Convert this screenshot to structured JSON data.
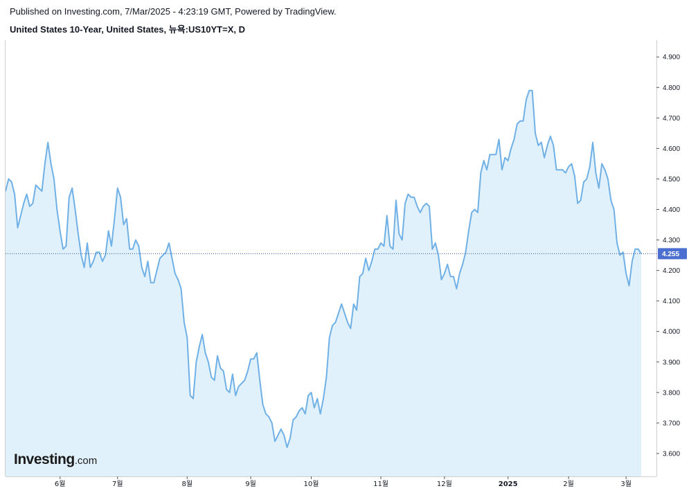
{
  "header": {
    "published": "Published on Investing.com, 7/Mar/2025 - 4:23:19 GMT, Powered by TradingView.",
    "instrument": "United States 10-Year, United States, 뉴욕:US10YT=X, D"
  },
  "logo": {
    "main": "Investing",
    "suffix": ".com"
  },
  "colors": {
    "line": "#6fb0e6",
    "fill": "#e1f1fb",
    "price_line": "#2f4f9f",
    "price_tag": "#4a6fd1",
    "axis": "#cfcfcf"
  },
  "chart_data": {
    "type": "area",
    "title": "United States 10-Year, United States, 뉴욕:US10YT=X, D",
    "ylim": [
      3.525,
      4.955
    ],
    "y_ticks": [
      3.6,
      3.7,
      3.8,
      3.9,
      4.0,
      4.1,
      4.2,
      4.3,
      4.4,
      4.5,
      4.6,
      4.7,
      4.8,
      4.9
    ],
    "y_tick_labels": [
      "3.600",
      "3.700",
      "3.800",
      "3.900",
      "4.000",
      "4.100",
      "4.200",
      "4.300",
      "4.400",
      "4.500",
      "4.600",
      "4.700",
      "4.800",
      "4.900"
    ],
    "x_ticks": [
      {
        "label": "6월",
        "index": 43,
        "bold": false
      },
      {
        "label": "7월",
        "index": 62,
        "bold": false
      },
      {
        "label": "8월",
        "index": 85,
        "bold": false
      },
      {
        "label": "9월",
        "index": 106,
        "bold": false
      },
      {
        "label": "10월",
        "index": 126,
        "bold": false
      },
      {
        "label": "11월",
        "index": 149,
        "bold": false
      },
      {
        "label": "12월",
        "index": 170,
        "bold": false
      },
      {
        "label": "2025",
        "index": 191,
        "bold": true
      },
      {
        "label": "2월",
        "index": 211,
        "bold": false
      },
      {
        "label": "3월",
        "index": 230,
        "bold": false
      }
    ],
    "last_value": 4.255,
    "last_value_label": "4.255",
    "x_start_index": 25,
    "values": [
      4.46,
      4.5,
      4.49,
      4.45,
      4.34,
      4.38,
      4.42,
      4.45,
      4.41,
      4.42,
      4.48,
      4.47,
      4.46,
      4.55,
      4.62,
      4.55,
      4.5,
      4.4,
      4.33,
      4.27,
      4.28,
      4.44,
      4.47,
      4.4,
      4.32,
      4.25,
      4.21,
      4.29,
      4.21,
      4.23,
      4.26,
      4.26,
      4.23,
      4.25,
      4.33,
      4.28,
      4.37,
      4.47,
      4.44,
      4.35,
      4.37,
      4.27,
      4.27,
      4.3,
      4.28,
      4.21,
      4.18,
      4.23,
      4.16,
      4.16,
      4.2,
      4.24,
      4.25,
      4.26,
      4.29,
      4.24,
      4.19,
      4.17,
      4.14,
      4.03,
      3.98,
      3.79,
      3.78,
      3.9,
      3.95,
      3.99,
      3.93,
      3.9,
      3.85,
      3.84,
      3.92,
      3.88,
      3.87,
      3.81,
      3.8,
      3.86,
      3.79,
      3.82,
      3.83,
      3.84,
      3.87,
      3.91,
      3.91,
      3.93,
      3.84,
      3.76,
      3.73,
      3.72,
      3.7,
      3.64,
      3.66,
      3.68,
      3.66,
      3.62,
      3.65,
      3.71,
      3.72,
      3.74,
      3.75,
      3.73,
      3.79,
      3.8,
      3.75,
      3.78,
      3.73,
      3.78,
      3.85,
      3.98,
      4.02,
      4.03,
      4.06,
      4.09,
      4.06,
      4.03,
      4.01,
      4.09,
      4.07,
      4.18,
      4.19,
      4.24,
      4.2,
      4.23,
      4.27,
      4.27,
      4.29,
      4.28,
      4.38,
      4.28,
      4.27,
      4.43,
      4.32,
      4.3,
      4.42,
      4.45,
      4.44,
      4.44,
      4.41,
      4.39,
      4.41,
      4.42,
      4.41,
      4.27,
      4.29,
      4.25,
      4.17,
      4.19,
      4.22,
      4.18,
      4.18,
      4.14,
      4.19,
      4.22,
      4.26,
      4.33,
      4.39,
      4.4,
      4.39,
      4.52,
      4.56,
      4.53,
      4.58,
      4.58,
      4.58,
      4.63,
      4.53,
      4.57,
      4.56,
      4.6,
      4.63,
      4.68,
      4.69,
      4.69,
      4.76,
      4.79,
      4.79,
      4.65,
      4.61,
      4.62,
      4.57,
      4.61,
      4.64,
      4.61,
      4.53,
      4.53,
      4.53,
      4.52,
      4.54,
      4.55,
      4.51,
      4.42,
      4.43,
      4.49,
      4.5,
      4.54,
      4.62,
      4.52,
      4.47,
      4.55,
      4.53,
      4.5,
      4.43,
      4.4,
      4.29,
      4.25,
      4.26,
      4.19,
      4.15,
      4.23,
      4.27,
      4.27,
      4.255
    ]
  }
}
